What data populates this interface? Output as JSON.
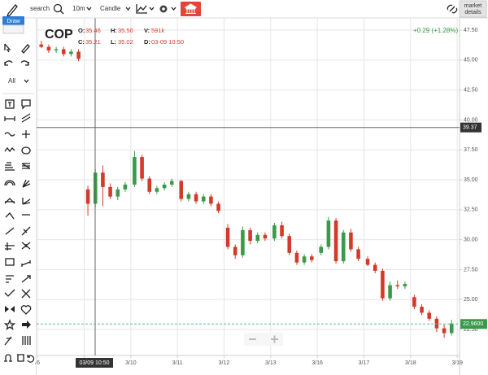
{
  "toolbar": {
    "search": "search",
    "interval": "10m",
    "chart_style": "Candle",
    "market_details": [
      "market",
      "details"
    ],
    "tooltip": "Draw"
  },
  "sidebar": {
    "filter": "All"
  },
  "chart_data": {
    "type": "candlestick",
    "title": "COP",
    "readout": [
      {
        "label": "O:",
        "value": "35.46"
      },
      {
        "label": "H:",
        "value": "35.50"
      },
      {
        "label": "V:",
        "value": "591k"
      },
      {
        "label": "C:",
        "value": "35.21"
      },
      {
        "label": "L:",
        "value": "35.02"
      },
      {
        "label": "D:",
        "value": "03-09 10:50"
      }
    ],
    "change": "+0.29 (+1.28%)",
    "crosshair_price": 39.37,
    "crosshair_time": "03/09 10:50",
    "last_price": 22.96,
    "last_price_label": "22.9600",
    "up_color": "#3a9a4a",
    "down_color": "#d23a2a",
    "x": [
      0.08,
      0.24,
      0.4,
      0.56,
      0.72,
      0.88,
      1.08,
      1.24,
      1.4,
      1.56,
      1.72,
      1.88,
      2.08,
      2.24,
      2.4,
      2.56,
      2.72,
      2.88,
      3.08,
      3.24,
      3.4,
      3.56,
      3.72,
      3.88,
      4.08,
      4.24,
      4.4,
      4.56,
      4.72,
      4.88,
      5.08,
      5.24,
      5.4,
      5.56,
      5.72,
      5.88,
      6.08,
      6.24,
      6.4,
      6.56,
      6.72,
      6.88,
      7.08,
      7.24,
      7.4,
      7.56,
      7.72,
      7.88,
      8.08,
      8.24,
      8.4,
      8.56,
      8.72,
      8.88
    ],
    "open": [
      46.3,
      46.1,
      45.8,
      45.9,
      45.5,
      45.7,
      34.2,
      33.0,
      35.6,
      34.4,
      33.6,
      34.2,
      34.6,
      36.9,
      35.1,
      34.0,
      34.3,
      34.6,
      34.9,
      33.4,
      33.8,
      33.2,
      33.6,
      33.0,
      31.0,
      29.4,
      28.7,
      30.8,
      29.9,
      30.4,
      30.1,
      31.2,
      30.3,
      28.9,
      28.1,
      28.6,
      28.9,
      29.4,
      31.6,
      28.2,
      30.6,
      29.2,
      28.4,
      27.9,
      27.4,
      25.1,
      26.2,
      26.1,
      25.2,
      24.4,
      23.9,
      23.4,
      22.6,
      22.2
    ],
    "high": [
      46.6,
      46.3,
      46.1,
      46.1,
      45.9,
      45.9,
      34.5,
      35.9,
      36.2,
      34.7,
      34.4,
      34.8,
      37.4,
      37.1,
      35.3,
      34.5,
      34.8,
      35.1,
      35.0,
      34.0,
      34.0,
      33.8,
      33.8,
      33.2,
      31.3,
      29.6,
      31.1,
      31.0,
      30.6,
      30.6,
      31.4,
      31.5,
      30.5,
      29.1,
      28.8,
      28.8,
      29.6,
      31.9,
      31.8,
      30.8,
      30.9,
      29.4,
      28.6,
      28.1,
      27.6,
      26.5,
      26.6,
      26.5,
      25.4,
      24.6,
      24.1,
      23.6,
      22.9,
      23.3
    ],
    "low": [
      46.0,
      45.6,
      45.6,
      45.3,
      45.3,
      44.9,
      32.0,
      32.7,
      32.8,
      33.4,
      33.3,
      34.0,
      34.4,
      34.9,
      33.8,
      33.8,
      34.1,
      34.4,
      33.2,
      33.2,
      33.0,
      33.0,
      32.8,
      32.2,
      29.2,
      28.4,
      28.5,
      29.6,
      29.7,
      29.9,
      29.9,
      30.1,
      28.7,
      27.9,
      27.9,
      28.1,
      28.7,
      29.2,
      28.0,
      28.0,
      29.0,
      28.2,
      27.8,
      27.2,
      24.9,
      24.9,
      25.9,
      25.9,
      24.2,
      23.7,
      23.2,
      22.3,
      21.8,
      22.0
    ],
    "close": [
      46.1,
      45.8,
      45.9,
      45.5,
      45.7,
      45.1,
      33.0,
      35.6,
      34.4,
      33.6,
      34.2,
      34.6,
      36.9,
      35.1,
      34.0,
      34.3,
      34.6,
      34.9,
      33.4,
      33.8,
      33.2,
      33.6,
      33.0,
      32.4,
      29.4,
      28.7,
      30.8,
      29.9,
      30.4,
      30.1,
      31.2,
      30.3,
      28.9,
      28.1,
      28.6,
      28.3,
      29.4,
      31.6,
      28.2,
      30.6,
      29.2,
      28.4,
      27.9,
      27.4,
      25.1,
      26.2,
      26.1,
      26.3,
      24.4,
      23.9,
      23.4,
      22.6,
      22.2,
      23.0
    ],
    "xlim": [
      -0.02,
      9.05
    ],
    "xticks": [
      {
        "value": 0,
        "label": "/6"
      },
      {
        "value": 1,
        "label": "3/9"
      },
      {
        "value": 2,
        "label": "3/10"
      },
      {
        "value": 3,
        "label": "3/11"
      },
      {
        "value": 4,
        "label": "3/12"
      },
      {
        "value": 5,
        "label": "3/13"
      },
      {
        "value": 6,
        "label": "3/16"
      },
      {
        "value": 7,
        "label": "3/17"
      },
      {
        "value": 8,
        "label": "3/18"
      },
      {
        "value": 9,
        "label": "3/19"
      }
    ],
    "ylim": [
      20.33,
      48.52
    ],
    "yticks": [
      {
        "value": 22.5,
        "label": "22.50"
      },
      {
        "value": 25,
        "label": "25.00"
      },
      {
        "value": 27.5,
        "label": "27.50"
      },
      {
        "value": 30,
        "label": "30.00"
      },
      {
        "value": 32.5,
        "label": "32.50"
      },
      {
        "value": 35,
        "label": "35.00"
      },
      {
        "value": 37.5,
        "label": "37.50"
      },
      {
        "value": 40,
        "label": "40.00"
      },
      {
        "value": 42.5,
        "label": "42.50"
      },
      {
        "value": 45,
        "label": "45.00"
      },
      {
        "value": 47.5,
        "label": "47.50"
      }
    ],
    "grid": true
  }
}
